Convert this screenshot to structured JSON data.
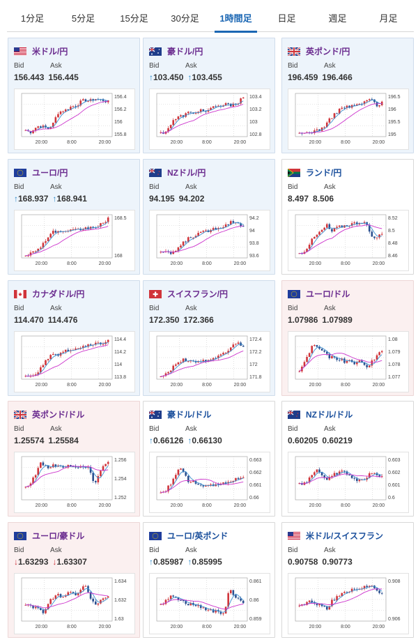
{
  "tabs": [
    "1分足",
    "5分足",
    "15分足",
    "30分足",
    "1時間足",
    "日足",
    "週足",
    "月足"
  ],
  "active_tab": 4,
  "labels": {
    "bid": "Bid",
    "ask": "Ask"
  },
  "colors": {
    "up_candle": "#d0343a",
    "down_candle": "#2a4f8f",
    "ma_short": "#3a8fd0",
    "ma_long": "#cc33cc"
  },
  "cards": [
    {
      "pair": "米ドル/円",
      "flag": "us-flag",
      "bid": "156.443",
      "ask": "156.445",
      "arrow": "",
      "bg": "up",
      "xticks": [
        "20:00",
        "8:00",
        "20:00"
      ],
      "yticks": [
        "156.4",
        "156.2",
        "156",
        "155.8"
      ],
      "trend": [
        0.15,
        0.1,
        0.2,
        0.25,
        0.22,
        0.18,
        0.3,
        0.55,
        0.6,
        0.62,
        0.7,
        0.72,
        0.8,
        0.85,
        0.82,
        0.88,
        0.86,
        0.84,
        0.8
      ]
    },
    {
      "pair": "豪ドル/円",
      "flag": "au-flag",
      "bid": "103.450",
      "ask": "103.455",
      "arrow": "up",
      "bg": "up",
      "xticks": [
        "20:00",
        "8:00",
        "20:00"
      ],
      "yticks": [
        "103.4",
        "103.2",
        "103",
        "102.8"
      ],
      "trend": [
        0.08,
        0.12,
        0.25,
        0.4,
        0.45,
        0.5,
        0.55,
        0.52,
        0.6,
        0.62,
        0.58,
        0.65,
        0.68,
        0.7,
        0.75,
        0.72,
        0.78,
        0.8,
        0.92
      ]
    },
    {
      "pair": "英ポンド/円",
      "flag": "gb-flag",
      "bid": "196.459",
      "ask": "196.466",
      "arrow": "",
      "bg": "up",
      "xticks": [
        "20:00",
        "8:00",
        "20:00"
      ],
      "yticks": [
        "196.5",
        "196",
        "195.5",
        "195"
      ],
      "trend": [
        0.05,
        0.08,
        0.1,
        0.12,
        0.15,
        0.2,
        0.3,
        0.45,
        0.55,
        0.65,
        0.7,
        0.68,
        0.72,
        0.75,
        0.78,
        0.85,
        0.88,
        0.65,
        0.8
      ]
    },
    {
      "pair": "ユーロ/円",
      "flag": "eu-flag",
      "bid": "168.937",
      "ask": "168.941",
      "arrow": "up",
      "bg": "up",
      "xticks": [
        "20:00",
        "8:00",
        "20:00"
      ],
      "yticks": [
        "168.5",
        "168"
      ],
      "trend": [
        0.08,
        0.1,
        0.15,
        0.25,
        0.35,
        0.5,
        0.6,
        0.62,
        0.58,
        0.6,
        0.62,
        0.64,
        0.66,
        0.68,
        0.7,
        0.72,
        0.75,
        0.8,
        0.9
      ]
    },
    {
      "pair": "NZドル/円",
      "flag": "nz-flag",
      "bid": "94.195",
      "ask": "94.202",
      "arrow": "",
      "bg": "up",
      "xticks": [
        "20:00",
        "8:00",
        "20:00"
      ],
      "yticks": [
        "94.2",
        "94",
        "93.8",
        "93.6"
      ],
      "trend": [
        0.15,
        0.12,
        0.1,
        0.15,
        0.25,
        0.35,
        0.45,
        0.5,
        0.55,
        0.58,
        0.62,
        0.65,
        0.7,
        0.72,
        0.75,
        0.82,
        0.85,
        0.8,
        0.75
      ]
    },
    {
      "pair": "ランド/円",
      "flag": "za-flag",
      "bid": "8.497",
      "ask": "8.506",
      "arrow": "",
      "bg": "white",
      "xticks": [
        "20:00",
        "8:00",
        "20:00"
      ],
      "yticks": [
        "8.52",
        "8.5",
        "8.48",
        "8.46"
      ],
      "trend": [
        0.1,
        0.15,
        0.3,
        0.45,
        0.55,
        0.65,
        0.75,
        0.6,
        0.7,
        0.72,
        0.75,
        0.78,
        0.8,
        0.82,
        0.85,
        0.7,
        0.4,
        0.5,
        0.55
      ]
    },
    {
      "pair": "カナダドル/円",
      "flag": "ca-flag",
      "bid": "114.470",
      "ask": "114.476",
      "arrow": "",
      "bg": "up",
      "xticks": [
        "20:00",
        "8:00",
        "20:00"
      ],
      "yticks": [
        "114.4",
        "114.2",
        "114",
        "113.8"
      ],
      "trend": [
        0.05,
        0.08,
        0.12,
        0.2,
        0.35,
        0.5,
        0.55,
        0.58,
        0.62,
        0.65,
        0.68,
        0.7,
        0.72,
        0.75,
        0.78,
        0.8,
        0.82,
        0.85,
        0.88
      ]
    },
    {
      "pair": "スイスフラン/円",
      "flag": "ch-flag",
      "bid": "172.350",
      "ask": "172.366",
      "arrow": "",
      "bg": "up",
      "xticks": [
        "20:00",
        "8:00",
        "20:00"
      ],
      "yticks": [
        "172.4",
        "172.2",
        "172",
        "171.8"
      ],
      "trend": [
        0.1,
        0.12,
        0.2,
        0.35,
        0.4,
        0.45,
        0.38,
        0.42,
        0.4,
        0.45,
        0.42,
        0.48,
        0.5,
        0.55,
        0.6,
        0.7,
        0.8,
        0.82,
        0.78
      ]
    },
    {
      "pair": "ユーロ/ドル",
      "flag": "eu-flag",
      "bid": "1.07986",
      "ask": "1.07989",
      "arrow": "",
      "bg": "down",
      "xticks": [
        "20:00",
        "8:00",
        "20:00"
      ],
      "yticks": [
        "1.08",
        "1.079",
        "1.078",
        "1.077"
      ],
      "trend": [
        0.2,
        0.35,
        0.6,
        0.8,
        0.75,
        0.65,
        0.55,
        0.5,
        0.45,
        0.48,
        0.4,
        0.42,
        0.38,
        0.4,
        0.35,
        0.3,
        0.45,
        0.55,
        0.65
      ]
    },
    {
      "pair": "英ポンド/ドル",
      "flag": "gb-flag",
      "bid": "1.25574",
      "ask": "1.25584",
      "arrow": "",
      "bg": "down",
      "xticks": [
        "20:00",
        "8:00",
        "20:00"
      ],
      "yticks": [
        "1.256",
        "1.254",
        "1.252"
      ],
      "trend": [
        0.3,
        0.4,
        0.55,
        0.85,
        0.8,
        0.75,
        0.78,
        0.8,
        0.76,
        0.78,
        0.74,
        0.76,
        0.75,
        0.78,
        0.72,
        0.3,
        0.6,
        0.8,
        0.85
      ]
    },
    {
      "pair": "豪ドル/ドル",
      "flag": "au-flag",
      "bid": "0.66126",
      "ask": "0.66130",
      "arrow": "up",
      "bg": "white",
      "xticks": [
        "20:00",
        "8:00",
        "20:00"
      ],
      "yticks": [
        "0.663",
        "0.662",
        "0.661",
        "0.66"
      ],
      "trend": [
        0.15,
        0.2,
        0.35,
        0.55,
        0.75,
        0.6,
        0.45,
        0.4,
        0.38,
        0.35,
        0.3,
        0.32,
        0.35,
        0.38,
        0.4,
        0.42,
        0.45,
        0.5,
        0.55
      ]
    },
    {
      "pair": "NZドル/ドル",
      "flag": "nz-flag",
      "bid": "0.60205",
      "ask": "0.60219",
      "arrow": "",
      "bg": "white",
      "xticks": [
        "20:00",
        "8:00",
        "20:00"
      ],
      "yticks": [
        "0.603",
        "0.602",
        "0.601",
        "0.6"
      ],
      "trend": [
        0.35,
        0.4,
        0.45,
        0.6,
        0.75,
        0.55,
        0.5,
        0.55,
        0.6,
        0.7,
        0.65,
        0.55,
        0.5,
        0.45,
        0.48,
        0.55,
        0.65,
        0.6,
        0.55
      ]
    },
    {
      "pair": "ユーロ/豪ドル",
      "flag": "eu-flag",
      "bid": "1.63293",
      "ask": "1.63307",
      "arrow": "down",
      "bg": "down",
      "xticks": [
        "20:00",
        "8:00",
        "20:00"
      ],
      "yticks": [
        "1.634",
        "1.632",
        "1.63"
      ],
      "trend": [
        0.4,
        0.35,
        0.3,
        0.25,
        0.2,
        0.45,
        0.55,
        0.6,
        0.5,
        0.65,
        0.7,
        0.62,
        0.75,
        0.8,
        0.6,
        0.35,
        0.45,
        0.5,
        0.55
      ]
    },
    {
      "pair": "ユーロ/英ポンド",
      "flag": "eu-flag",
      "bid": "0.85987",
      "ask": "0.85995",
      "arrow": "up",
      "bg": "white",
      "xticks": [
        "20:00",
        "8:00",
        "20:00"
      ],
      "yticks": [
        "0.861",
        "0.86",
        "0.859"
      ],
      "trend": [
        0.4,
        0.45,
        0.55,
        0.6,
        0.5,
        0.45,
        0.4,
        0.38,
        0.35,
        0.3,
        0.28,
        0.25,
        0.22,
        0.2,
        0.18,
        0.8,
        0.6,
        0.5,
        0.45
      ]
    },
    {
      "pair": "米ドル/スイスフラン",
      "flag": "us-flag",
      "bid": "0.90758",
      "ask": "0.90773",
      "arrow": "",
      "bg": "white",
      "xticks": [
        "20:00",
        "8:00",
        "20:00"
      ],
      "yticks": [
        "0.908",
        "0.906"
      ],
      "trend": [
        0.35,
        0.4,
        0.45,
        0.42,
        0.4,
        0.35,
        0.3,
        0.45,
        0.55,
        0.6,
        0.65,
        0.7,
        0.72,
        0.75,
        0.78,
        0.8,
        0.78,
        0.7,
        0.65
      ]
    }
  ]
}
